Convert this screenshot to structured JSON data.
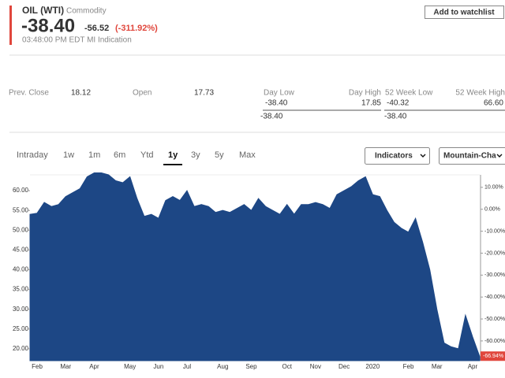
{
  "header": {
    "symbol": "OIL (WTI)",
    "kind": "Commodity",
    "price": "-38.40",
    "change": "-56.52",
    "change_pct": "(-311.92%)",
    "timestamp": "03:48:00 PM EDT MI Indication",
    "watchlist_button": "Add to watchlist"
  },
  "stats": {
    "prev_close_label": "Prev. Close",
    "prev_close": "18.12",
    "open_label": "Open",
    "open": "17.73",
    "day_low_label": "Day Low",
    "day_high_label": "Day High",
    "day_low": "-38.40",
    "day_high": "17.85",
    "day_current": "-38.40",
    "week52_low_label": "52 Week Low",
    "week52_high_label": "52 Week High",
    "week52_low": "-40.32",
    "week52_high": "66.60",
    "week52_current": "-38.40"
  },
  "tabs": [
    "Intraday",
    "1w",
    "1m",
    "6m",
    "Ytd",
    "1y",
    "3y",
    "5y",
    "Max"
  ],
  "selected_tab": 5,
  "dropdowns": [
    "Indicators",
    "Mountain-Cha"
  ],
  "chart_data": {
    "type": "area",
    "categories": [
      null,
      "Feb",
      null,
      null,
      null,
      "Mar",
      null,
      null,
      null,
      "Apr",
      null,
      null,
      null,
      null,
      "May",
      null,
      null,
      null,
      "Jun",
      null,
      null,
      null,
      "Jul",
      null,
      null,
      null,
      null,
      "Aug",
      null,
      null,
      null,
      "Sep",
      null,
      null,
      null,
      null,
      "Oct",
      null,
      null,
      null,
      "Nov",
      null,
      null,
      null,
      "Dec",
      null,
      null,
      null,
      "2020",
      null,
      null,
      null,
      null,
      "Feb",
      null,
      null,
      null,
      "Mar",
      null,
      null,
      null,
      null,
      "Apr",
      null
    ],
    "series": [
      {
        "color": "#1d4785",
        "values": [
          54.0,
          54.3,
          57.0,
          56.0,
          56.5,
          58.5,
          59.5,
          60.5,
          63.5,
          64.5,
          64.5,
          64.0,
          62.5,
          62.0,
          63.5,
          58.0,
          53.5,
          54.0,
          53.0,
          57.5,
          58.5,
          57.5,
          60.0,
          56.0,
          56.5,
          56.0,
          54.5,
          55.0,
          54.5,
          55.5,
          56.5,
          55.0,
          58.0,
          56.0,
          55.0,
          54.0,
          56.5,
          54.0,
          56.5,
          56.5,
          57.0,
          56.5,
          55.5,
          59.0,
          60.0,
          61.0,
          62.5,
          63.5,
          59.0,
          58.5,
          55.0,
          52.0,
          50.5,
          49.5,
          53.0,
          47.0,
          40.0,
          30.0,
          21.5,
          20.5,
          20.0,
          28.5,
          23.0,
          18.0
        ]
      }
    ],
    "ylim": [
      17,
      64
    ],
    "yticks": [
      {
        "value": 20,
        "label": "20.00"
      },
      {
        "value": 25,
        "label": "25.00"
      },
      {
        "value": 30,
        "label": "30.00"
      },
      {
        "value": 35,
        "label": "35.00"
      },
      {
        "value": 40,
        "label": "40.00"
      },
      {
        "value": 45,
        "label": "45.00"
      },
      {
        "value": 50,
        "label": "50.00"
      },
      {
        "value": 55,
        "label": "55.00"
      },
      {
        "value": 60,
        "label": "60.00"
      }
    ],
    "y2lim": [
      -69,
      15.7
    ],
    "y2ticks": [
      {
        "value": 10,
        "label": "10.00%"
      },
      {
        "value": 0,
        "label": "0.00%"
      },
      {
        "value": -10,
        "label": "-10.00%"
      },
      {
        "value": -20,
        "label": "-20.00%"
      },
      {
        "value": -30,
        "label": "-30.00%"
      },
      {
        "value": -40,
        "label": "-40.00%"
      },
      {
        "value": -50,
        "label": "-50.00%"
      },
      {
        "value": -60,
        "label": "-60.00%"
      }
    ],
    "current_badge": {
      "value": -66.94,
      "label": "-66.94%",
      "color": "#e0463c"
    }
  }
}
